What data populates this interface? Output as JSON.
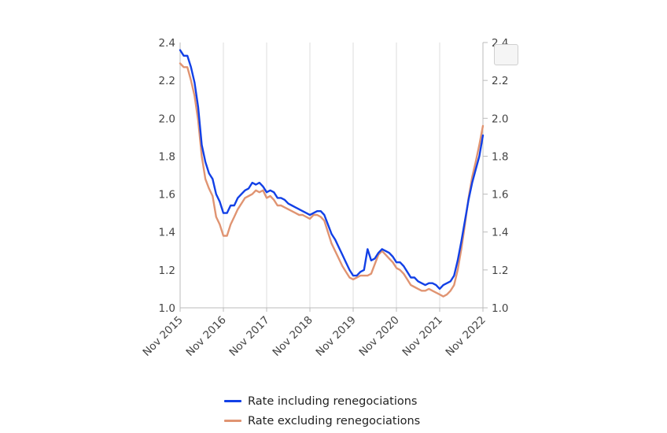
{
  "chart_data": {
    "type": "line",
    "title": "",
    "xlabel": "",
    "ylabel": "",
    "x": [
      "2015-11",
      "2015-12",
      "2016-01",
      "2016-02",
      "2016-03",
      "2016-04",
      "2016-05",
      "2016-06",
      "2016-07",
      "2016-08",
      "2016-09",
      "2016-10",
      "2016-11",
      "2016-12",
      "2017-01",
      "2017-02",
      "2017-03",
      "2017-04",
      "2017-05",
      "2017-06",
      "2017-07",
      "2017-08",
      "2017-09",
      "2017-10",
      "2017-11",
      "2017-12",
      "2018-01",
      "2018-02",
      "2018-03",
      "2018-04",
      "2018-05",
      "2018-06",
      "2018-07",
      "2018-08",
      "2018-09",
      "2018-10",
      "2018-11",
      "2018-12",
      "2019-01",
      "2019-02",
      "2019-03",
      "2019-04",
      "2019-05",
      "2019-06",
      "2019-07",
      "2019-08",
      "2019-09",
      "2019-10",
      "2019-11",
      "2019-12",
      "2020-01",
      "2020-02",
      "2020-03",
      "2020-04",
      "2020-05",
      "2020-06",
      "2020-07",
      "2020-08",
      "2020-09",
      "2020-10",
      "2020-11",
      "2020-12",
      "2021-01",
      "2021-02",
      "2021-03",
      "2021-04",
      "2021-05",
      "2021-06",
      "2021-07",
      "2021-08",
      "2021-09",
      "2021-10",
      "2021-11",
      "2021-12",
      "2022-01",
      "2022-02",
      "2022-03",
      "2022-04",
      "2022-05",
      "2022-06",
      "2022-07",
      "2022-08",
      "2022-09",
      "2022-10",
      "2022-11"
    ],
    "xticks": [
      "Nov 2015",
      "Nov 2016",
      "Nov 2017",
      "Nov 2018",
      "Nov 2019",
      "Nov 2020",
      "Nov 2021",
      "Nov 2022"
    ],
    "ylim": [
      1.0,
      2.4
    ],
    "yticks": [
      "1.0",
      "1.2",
      "1.4",
      "1.6",
      "1.8",
      "2.0",
      "2.2",
      "2.4"
    ],
    "grid": "vertical",
    "legend_position": "bottom",
    "series": [
      {
        "name": "Rate including renegociations",
        "color": "#1240e6",
        "values": [
          2.36,
          2.33,
          2.33,
          2.27,
          2.19,
          2.06,
          1.86,
          1.77,
          1.71,
          1.68,
          1.6,
          1.56,
          1.5,
          1.5,
          1.54,
          1.54,
          1.58,
          1.6,
          1.62,
          1.63,
          1.66,
          1.65,
          1.66,
          1.64,
          1.61,
          1.62,
          1.61,
          1.58,
          1.58,
          1.57,
          1.55,
          1.54,
          1.53,
          1.52,
          1.51,
          1.5,
          1.49,
          1.5,
          1.51,
          1.51,
          1.49,
          1.44,
          1.39,
          1.36,
          1.32,
          1.28,
          1.24,
          1.2,
          1.17,
          1.17,
          1.19,
          1.2,
          1.31,
          1.25,
          1.26,
          1.29,
          1.31,
          1.3,
          1.29,
          1.27,
          1.24,
          1.24,
          1.22,
          1.19,
          1.16,
          1.16,
          1.14,
          1.13,
          1.12,
          1.13,
          1.13,
          1.12,
          1.1,
          1.12,
          1.13,
          1.14,
          1.17,
          1.25,
          1.35,
          1.46,
          1.57,
          1.66,
          1.73,
          1.8,
          1.91
        ]
      },
      {
        "name": "Rate excluding renegociations",
        "color": "#e09472",
        "values": [
          2.29,
          2.27,
          2.27,
          2.2,
          2.12,
          1.99,
          1.8,
          1.68,
          1.63,
          1.59,
          1.48,
          1.44,
          1.38,
          1.38,
          1.44,
          1.48,
          1.52,
          1.55,
          1.58,
          1.59,
          1.6,
          1.62,
          1.61,
          1.62,
          1.58,
          1.59,
          1.57,
          1.54,
          1.54,
          1.53,
          1.52,
          1.51,
          1.5,
          1.49,
          1.49,
          1.48,
          1.47,
          1.49,
          1.49,
          1.48,
          1.46,
          1.4,
          1.34,
          1.3,
          1.26,
          1.22,
          1.19,
          1.16,
          1.15,
          1.16,
          1.17,
          1.17,
          1.17,
          1.18,
          1.23,
          1.28,
          1.3,
          1.28,
          1.26,
          1.24,
          1.21,
          1.2,
          1.18,
          1.15,
          1.12,
          1.11,
          1.1,
          1.09,
          1.09,
          1.1,
          1.09,
          1.08,
          1.07,
          1.06,
          1.07,
          1.09,
          1.12,
          1.2,
          1.31,
          1.44,
          1.58,
          1.69,
          1.77,
          1.86,
          1.96
        ]
      }
    ]
  }
}
